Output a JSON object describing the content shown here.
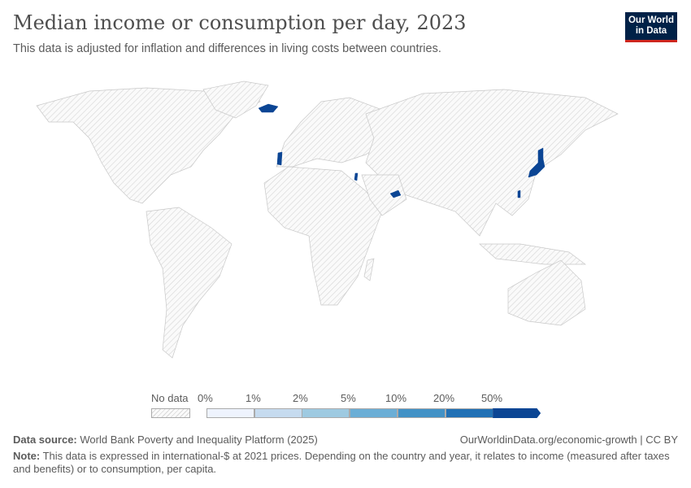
{
  "header": {
    "title": "Median income or consumption per day, 2023",
    "subtitle": "This data is adjusted for inflation and differences in living costs between countries.",
    "logo": "Our World in Data"
  },
  "map": {
    "highlighted_countries_color": "#0b4594",
    "no_data_pattern": "hatched-gray"
  },
  "legend": {
    "no_data_label": "No data",
    "bins": [
      {
        "label": "0%",
        "color": "#eef3fd"
      },
      {
        "label": "1%",
        "color": "#c6dbef"
      },
      {
        "label": "2%",
        "color": "#9ecae1"
      },
      {
        "label": "5%",
        "color": "#6baed6"
      },
      {
        "label": "10%",
        "color": "#4292c6"
      },
      {
        "label": "20%",
        "color": "#2171b5"
      },
      {
        "label": "50%",
        "color": "#0b4594"
      }
    ]
  },
  "footer": {
    "source_label": "Data source:",
    "source": "World Bank Poverty and Inequality Platform (2025)",
    "url": "OurWorldinData.org/economic-growth | CC BY",
    "note_label": "Note:",
    "note": "This data is expressed in international-$ at 2021 prices. Depending on the country and year, it relates to income (measured after taxes and benefits) or to consumption, per capita."
  }
}
